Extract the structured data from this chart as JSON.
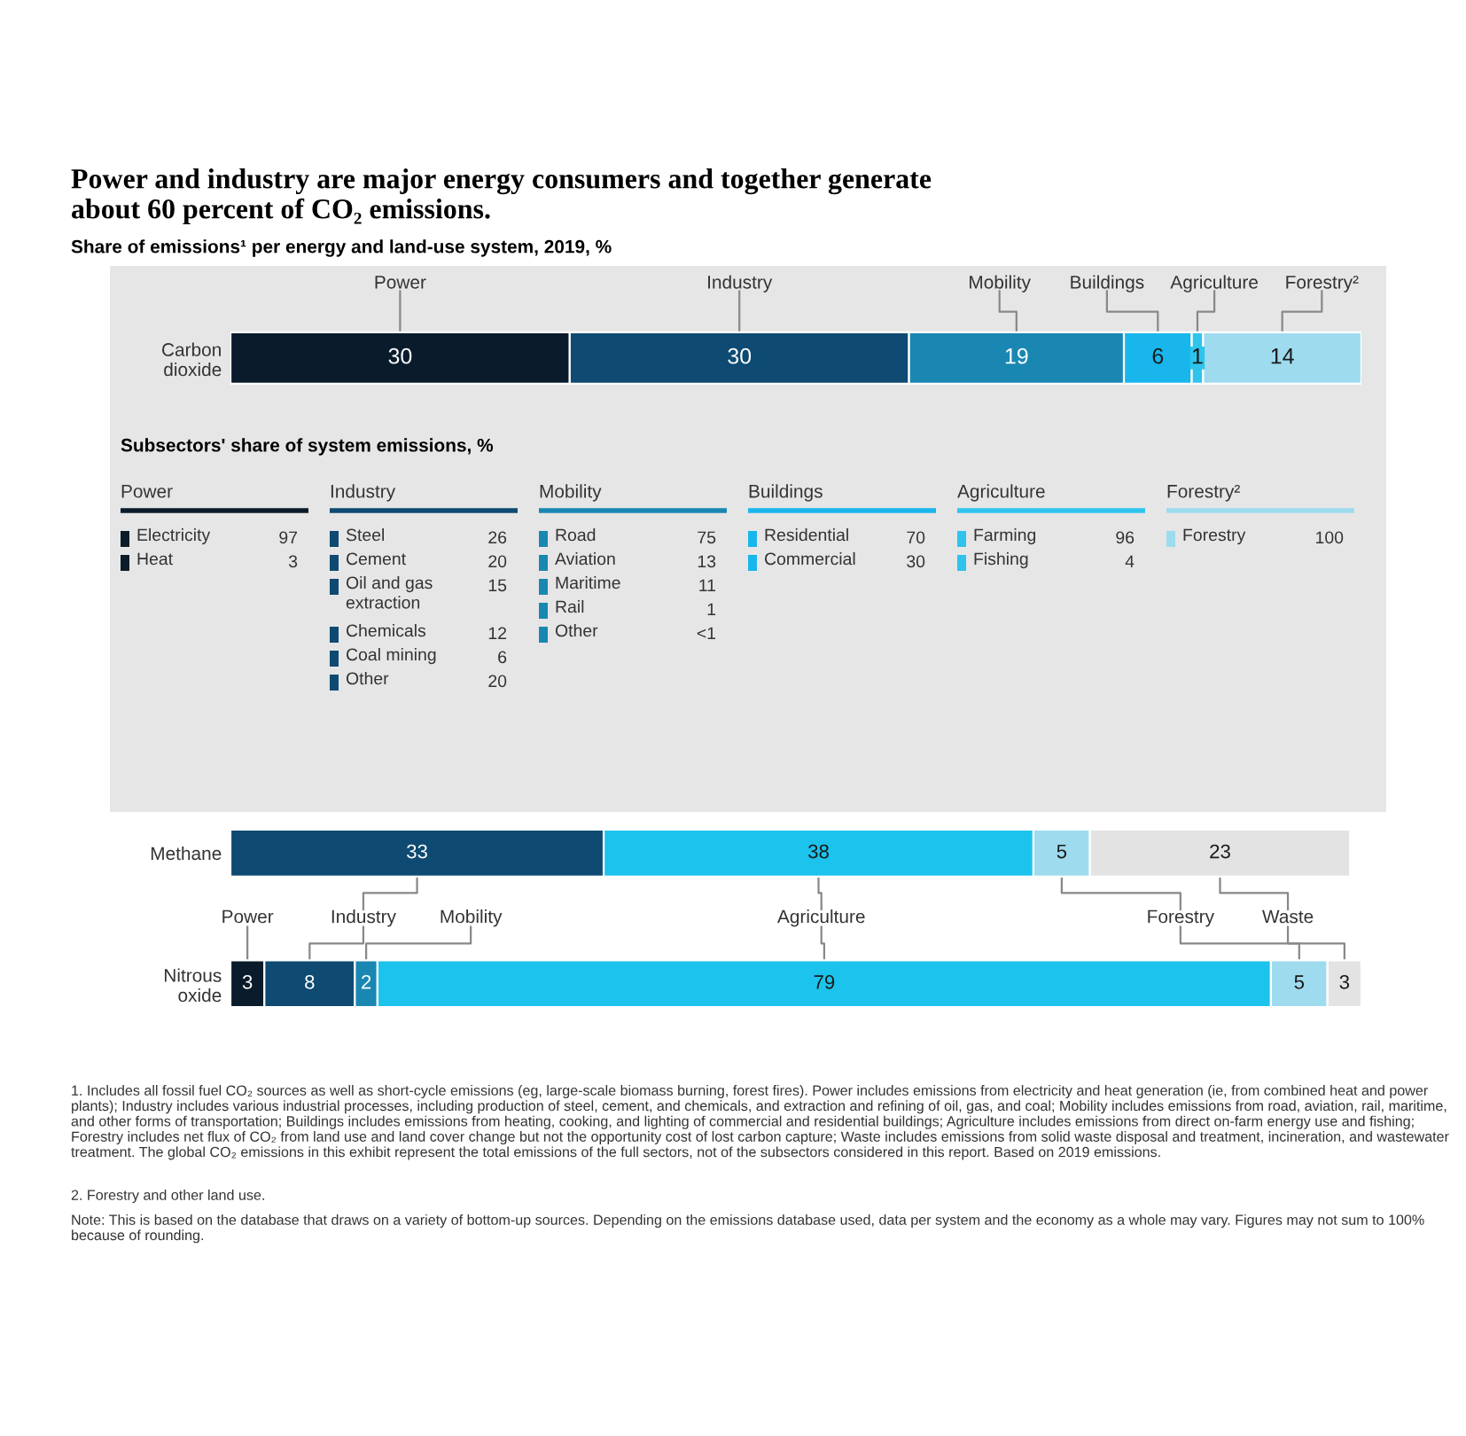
{
  "chart_data": [
    {
      "type": "bar",
      "orientation": "horizontal",
      "stacked": true,
      "data_labels": true,
      "tick_labels": "y",
      "title": "Power and industry are major energy consumers and together generate about 60 percent of CO₂ emissions.",
      "subtitle": "Share of emissions¹ per energy and land-use system, 2019, %",
      "categories": [
        "Carbon dioxide"
      ],
      "series": [
        {
          "name": "Power",
          "color": "#0a1c2c",
          "values": [
            30
          ]
        },
        {
          "name": "Industry",
          "color": "#0e4a72",
          "values": [
            30
          ]
        },
        {
          "name": "Mobility",
          "color": "#1a87b3",
          "values": [
            19
          ]
        },
        {
          "name": "Buildings",
          "color": "#19b6ec",
          "values": [
            6
          ]
        },
        {
          "name": "Agriculture",
          "color": "#2ec4ec",
          "values": [
            1
          ]
        },
        {
          "name": "Forestry²",
          "color": "#9edbef",
          "values": [
            14
          ]
        }
      ]
    },
    {
      "type": "other",
      "data_labels": true,
      "title": "Power",
      "annotations": [
        "Subsectors' share of system emissions, %"
      ],
      "categories": [
        "Electricity",
        "Heat"
      ],
      "values": [
        97,
        3
      ],
      "colors": [
        "#0a1c2c",
        "#0a1c2c"
      ]
    },
    {
      "type": "other",
      "data_labels": true,
      "title": "Industry",
      "categories": [
        "Steel",
        "Cement",
        "Oil and gas extraction",
        "Chemicals",
        "Coal mining",
        "Other"
      ],
      "values": [
        26,
        20,
        15,
        12,
        6,
        20
      ],
      "colors": [
        "#0e4a72",
        "#0e4a72",
        "#0e4a72",
        "#0e4a72",
        "#0e4a72",
        "#0e4a72"
      ]
    },
    {
      "type": "other",
      "data_labels": true,
      "title": "Mobility",
      "categories": [
        "Road",
        "Aviation",
        "Maritime",
        "Rail",
        "Other"
      ],
      "values": [
        75,
        13,
        11,
        1,
        null
      ],
      "value_labels": [
        "75",
        "13",
        "11",
        "1",
        "<1"
      ],
      "colors": [
        "#1a87b3",
        "#1a87b3",
        "#1a87b3",
        "#1a87b3",
        "#1a87b3"
      ]
    },
    {
      "type": "other",
      "data_labels": true,
      "title": "Buildings",
      "categories": [
        "Residential",
        "Commercial"
      ],
      "values": [
        70,
        30
      ],
      "colors": [
        "#19b6ec",
        "#19b6ec"
      ]
    },
    {
      "type": "other",
      "data_labels": true,
      "title": "Agriculture",
      "categories": [
        "Farming",
        "Fishing"
      ],
      "values": [
        96,
        4
      ],
      "colors": [
        "#2ec4ec",
        "#2ec4ec"
      ]
    },
    {
      "type": "other",
      "data_labels": true,
      "title": "Forestry²",
      "categories": [
        "Forestry"
      ],
      "values": [
        100
      ],
      "colors": [
        "#9edbef"
      ]
    },
    {
      "type": "bar",
      "orientation": "horizontal",
      "stacked": true,
      "data_labels": true,
      "tick_labels": "y",
      "categories": [
        "Methane",
        "Nitrous oxide"
      ],
      "series": [
        {
          "name": "Power",
          "color": "#0a1c2c",
          "values": [
            null,
            3
          ]
        },
        {
          "name": "Industry",
          "color": "#0e4a72",
          "values": [
            33,
            8
          ]
        },
        {
          "name": "Mobility",
          "color": "#1a87b3",
          "values": [
            null,
            2
          ]
        },
        {
          "name": "Agriculture",
          "color": "#1cc3ec",
          "values": [
            38,
            79
          ]
        },
        {
          "name": "Forestry",
          "color": "#9edbef",
          "values": [
            5,
            5
          ]
        },
        {
          "name": "Waste",
          "color": "#e3e3e3",
          "values": [
            23,
            3
          ]
        }
      ],
      "annotations": [
        "1. Includes all fossil fuel CO₂ sources as well as short-cycle emissions (eg, large-scale biomass burning, forest fires). Power includes emissions from electricity and heat generation (ie, from combined heat and power plants); Industry includes various industrial processes, including production of steel, cement, and chemicals, and extraction and refining of oil, gas, and coal; Mobility includes emissions from road, aviation, rail, maritime, and other forms of transportation; Buildings includes emissions from heating, cooking, and lighting of commercial and residential buildings; Agriculture includes emissions from direct on-farm energy use and fishing; Forestry includes net flux of CO₂ from land use and land cover change but not the opportunity cost of lost carbon capture; Waste includes emissions from solid waste disposal and treatment, incineration, and wastewater treatment. The global CO₂ emissions in this exhibit represent the total emissions of the full sectors, not of the subsectors considered in this report. Based on 2019 emissions.",
        "2. Forestry and other land use.",
        "Note: This is based on the database that draws on a variety of bottom-up sources. Depending on the emissions database used, data per system and the economy as a whole may vary. Figures may not sum to 100% because of rounding."
      ]
    }
  ]
}
